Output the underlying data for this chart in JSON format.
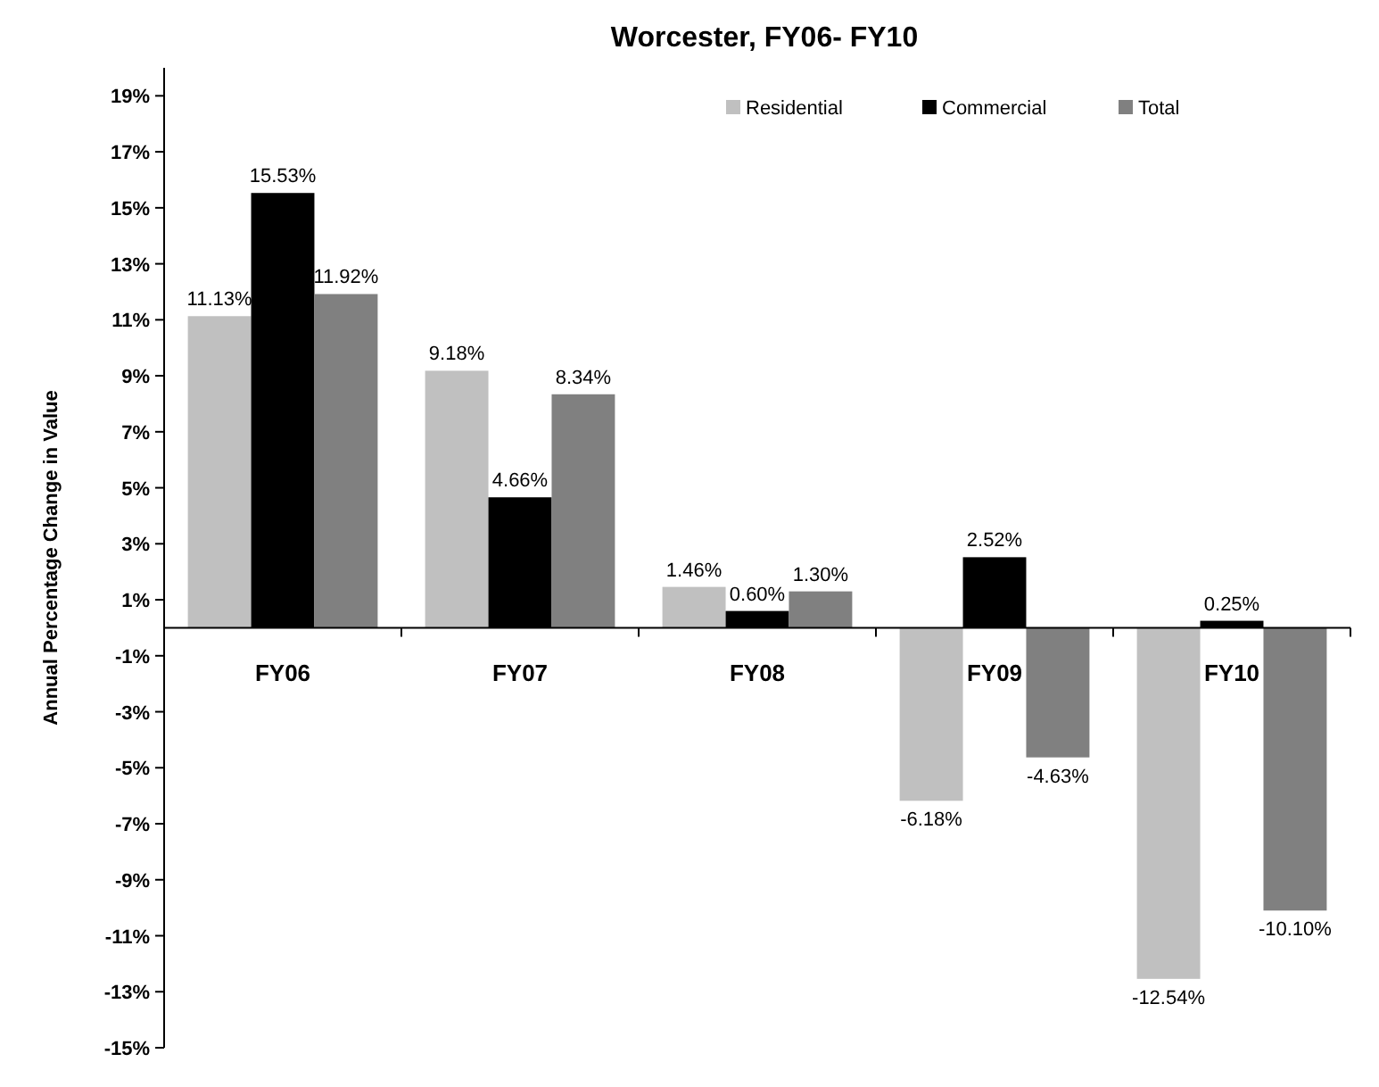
{
  "chart_data": {
    "type": "bar",
    "title": "Worcester, FY06- FY10",
    "ylabel": "Annual Percentage Change in Value",
    "categories": [
      "FY06",
      "FY07",
      "FY08",
      "FY09",
      "FY10"
    ],
    "series": [
      {
        "name": "Residential",
        "color": "#c0c0c0",
        "values": [
          11.13,
          9.18,
          1.46,
          -6.18,
          -12.54
        ],
        "value_labels": [
          "11.13%",
          "9.18%",
          "1.46%",
          "-6.18%",
          "-12.54%"
        ]
      },
      {
        "name": "Commercial",
        "color": "#000000",
        "values": [
          15.53,
          4.66,
          0.6,
          2.52,
          0.25
        ],
        "value_labels": [
          "15.53%",
          "4.66%",
          "0.60%",
          "2.52%",
          "0.25%"
        ]
      },
      {
        "name": "Total",
        "color": "#808080",
        "values": [
          11.92,
          8.34,
          1.3,
          -4.63,
          -10.1
        ],
        "value_labels": [
          "11.92%",
          "8.34%",
          "1.30%",
          "-4.63%",
          "-10.10%"
        ]
      }
    ],
    "ylim": [
      -15,
      20
    ],
    "yticks": [
      {
        "value": -15,
        "label": "-15%"
      },
      {
        "value": -13,
        "label": "-13%"
      },
      {
        "value": -11,
        "label": "-11%"
      },
      {
        "value": -9,
        "label": "-9%"
      },
      {
        "value": -7,
        "label": "-7%"
      },
      {
        "value": -5,
        "label": "-5%"
      },
      {
        "value": -3,
        "label": "-3%"
      },
      {
        "value": -1,
        "label": "-1%"
      },
      {
        "value": 1,
        "label": "1%"
      },
      {
        "value": 3,
        "label": "3%"
      },
      {
        "value": 5,
        "label": "5%"
      },
      {
        "value": 7,
        "label": "7%"
      },
      {
        "value": 9,
        "label": "9%"
      },
      {
        "value": 11,
        "label": "11%"
      },
      {
        "value": 13,
        "label": "13%"
      },
      {
        "value": 15,
        "label": "15%"
      },
      {
        "value": 17,
        "label": "17%"
      },
      {
        "value": 19,
        "label": "19%"
      }
    ],
    "grid": false,
    "legend": "top right"
  }
}
